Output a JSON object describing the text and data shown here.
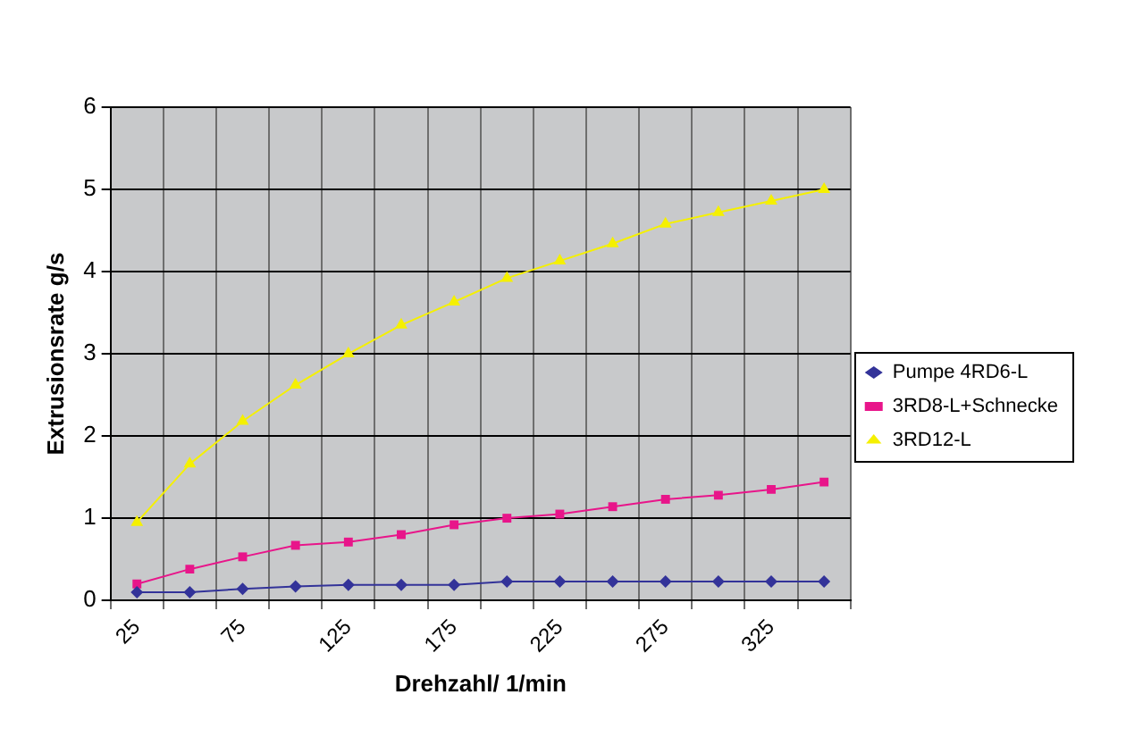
{
  "chart_data": {
    "type": "line",
    "xlabel": "Drehzahl/ 1/min",
    "ylabel": "Extrusionsrate g/s",
    "categories": [
      "25",
      null,
      "75",
      null,
      "125",
      null,
      "175",
      null,
      "225",
      null,
      "275",
      null,
      "325",
      null
    ],
    "series": [
      {
        "name": "Pumpe 4RD6-L",
        "color": "#333399",
        "marker": "diamond",
        "values": [
          0.1,
          0.1,
          0.14,
          0.17,
          0.19,
          0.19,
          0.19,
          0.23,
          0.23,
          0.23,
          0.23,
          0.23,
          0.23,
          0.23
        ]
      },
      {
        "name": "3RD8-L+Schnecke",
        "color": "#e8158a",
        "marker": "square",
        "values": [
          0.2,
          0.38,
          0.53,
          0.67,
          0.71,
          0.8,
          0.92,
          1.0,
          1.05,
          1.14,
          1.23,
          1.28,
          1.35,
          1.44
        ]
      },
      {
        "name": "3RD12-L",
        "color": "#f5f000",
        "marker": "triangle",
        "values": [
          0.95,
          1.66,
          2.18,
          2.62,
          3.0,
          3.35,
          3.63,
          3.92,
          4.13,
          4.34,
          4.58,
          4.72,
          4.86,
          5.0
        ]
      }
    ],
    "ylim": [
      0,
      6
    ],
    "yticks": [
      0,
      1,
      2,
      3,
      4,
      5,
      6
    ],
    "grid": true,
    "legend": "right",
    "line_style": "solid"
  }
}
